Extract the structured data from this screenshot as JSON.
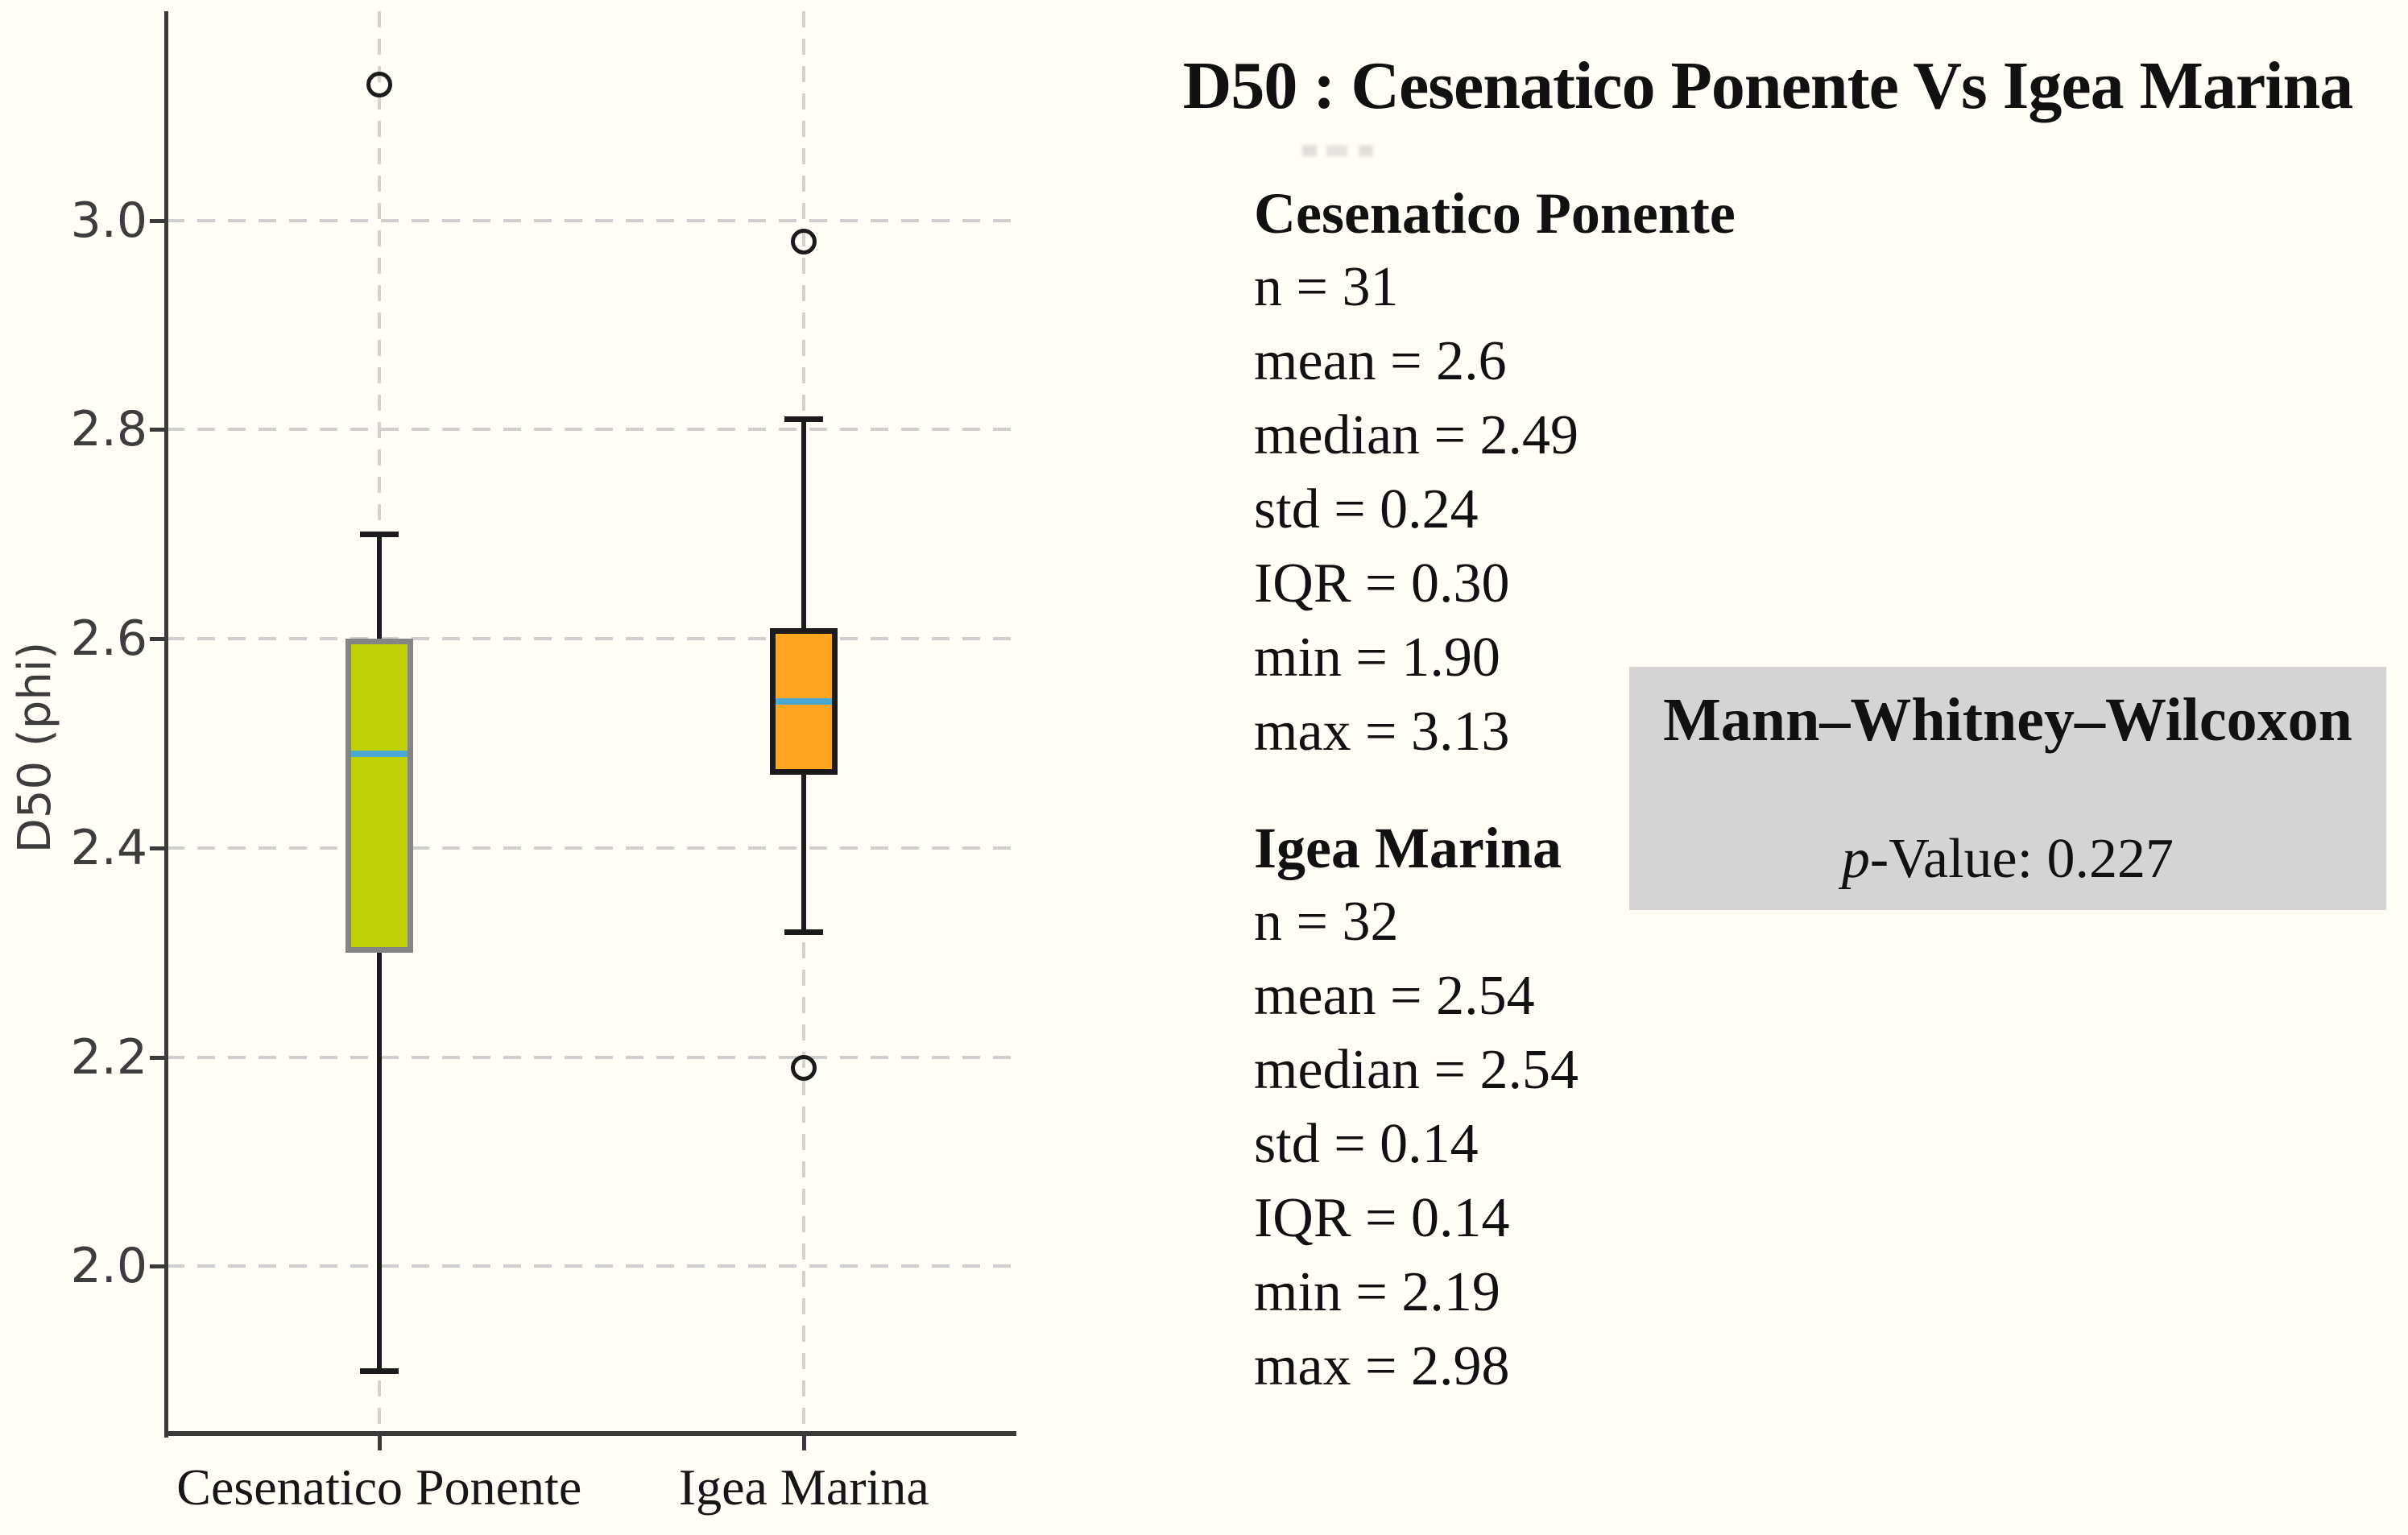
{
  "figure": {
    "title": "D50 : Cesenatico Ponente Vs Igea Marina",
    "stats_blocks": [
      {
        "heading": "Cesenatico Ponente",
        "lines": [
          "n = 31",
          "mean = 2.6",
          "median = 2.49",
          "std = 0.24",
          "IQR = 0.30",
          "min = 1.90",
          "max = 3.13"
        ]
      },
      {
        "heading": "Igea Marina",
        "lines": [
          "n = 32",
          "mean = 2.54",
          "median = 2.54",
          "std = 0.14",
          "IQR = 0.14",
          "min = 2.19",
          "max = 2.98"
        ]
      }
    ],
    "test_box": {
      "name": "Mann–Whitney–Wilcoxon",
      "p_italic": "p",
      "p_rest": "-Value: 0.227",
      "bg_color": "#d4d4d4"
    }
  },
  "chart_data": {
    "type": "boxplot",
    "title": "D50 : Cesenatico Ponente Vs Igea Marina",
    "xlabel": "",
    "ylabel": "D50 (phi)",
    "categories": [
      "Cesenatico Ponente",
      "Igea Marina"
    ],
    "yticks": [
      2.0,
      2.2,
      2.4,
      2.6,
      2.8,
      3.0
    ],
    "ylim": [
      1.84,
      3.2
    ],
    "grid": "dashed-both-axes",
    "legend": "none",
    "colors": {
      "grid": "#cfcfcf",
      "spine": "#3a3a3a",
      "whisker": "#1b1b1b",
      "median": "#4aa9d2",
      "background": "#fffdf6"
    },
    "series": [
      {
        "name": "Cesenatico Ponente",
        "n": 31,
        "mean": 2.6,
        "median": 2.49,
        "std": 0.24,
        "iqr": 0.3,
        "min": 1.9,
        "max": 3.13,
        "q1": 2.3,
        "q3": 2.6,
        "whisker_low": 1.9,
        "whisker_high": 2.7,
        "outliers": [
          3.13
        ],
        "box_fill": "#bfd106",
        "box_edge": "#858585"
      },
      {
        "name": "Igea Marina",
        "n": 32,
        "mean": 2.54,
        "median": 2.54,
        "std": 0.14,
        "iqr": 0.14,
        "min": 2.19,
        "max": 2.98,
        "q1": 2.47,
        "q3": 2.61,
        "whisker_low": 2.32,
        "whisker_high": 2.81,
        "outliers": [
          2.98,
          2.19
        ],
        "box_fill": "#ffa51e",
        "box_edge": "#1b1b1b"
      }
    ]
  }
}
